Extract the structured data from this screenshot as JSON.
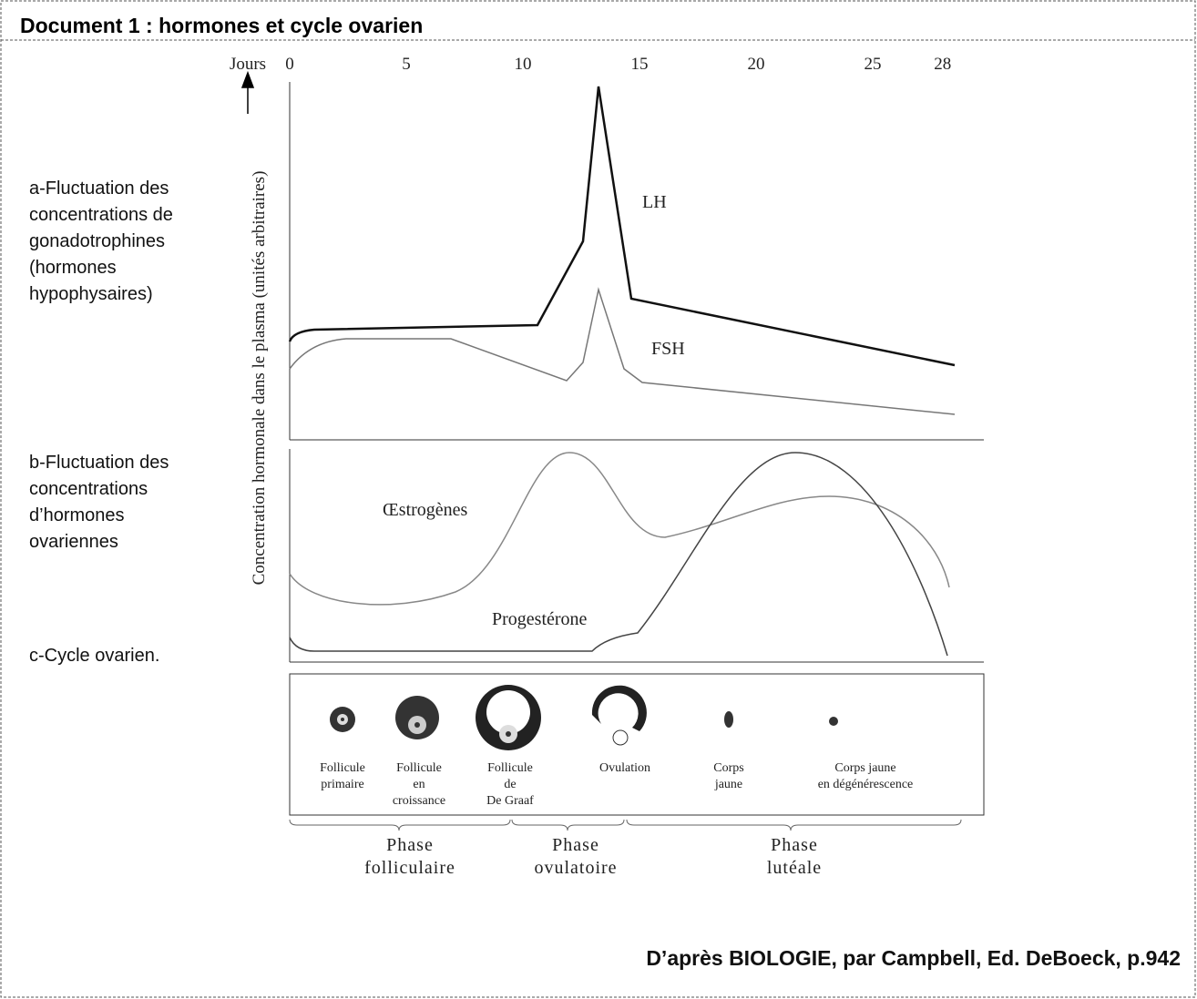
{
  "title": "Document 1 : hormones et cycle ovarien",
  "days_axis": {
    "label": "Jours",
    "ticks": [
      0,
      5,
      10,
      15,
      20,
      25,
      28
    ]
  },
  "y_axis_label": "Concentration hormonale dans le plasma (unités arbitraires)",
  "sections": [
    {
      "lines": [
        "a-Fluctuation des",
        "concentrations de",
        "gonadotrophines",
        "(hormones",
        "hypophysaires)"
      ]
    },
    {
      "lines": [
        "b-Fluctuation des",
        "concentrations",
        "d’hormones",
        "ovariennes"
      ]
    },
    {
      "lines": [
        "c-Cycle ovarien."
      ]
    }
  ],
  "curve_labels": {
    "lh": "LH",
    "fsh": "FSH",
    "estrogens": "Œstrogènes",
    "progesterone": "Progestérone"
  },
  "stages": [
    {
      "lines": [
        "Follicule",
        "primaire"
      ]
    },
    {
      "lines": [
        "Follicule",
        "en",
        "croissance"
      ]
    },
    {
      "lines": [
        "Follicule",
        "de",
        "De Graaf"
      ]
    },
    {
      "lines": [
        "Ovulation"
      ]
    },
    {
      "lines": [
        "Corps",
        "jaune"
      ]
    },
    {
      "lines": [
        "Corps jaune",
        "en dégénérescence"
      ]
    }
  ],
  "phases": [
    {
      "lines": [
        "Phase",
        "folliculaire"
      ]
    },
    {
      "lines": [
        "Phase",
        "ovulatoire"
      ]
    },
    {
      "lines": [
        "Phase",
        "lutéale"
      ]
    }
  ],
  "source": "D’après BIOLOGIE, par Campbell, Ed. DeBoeck, p.942"
}
